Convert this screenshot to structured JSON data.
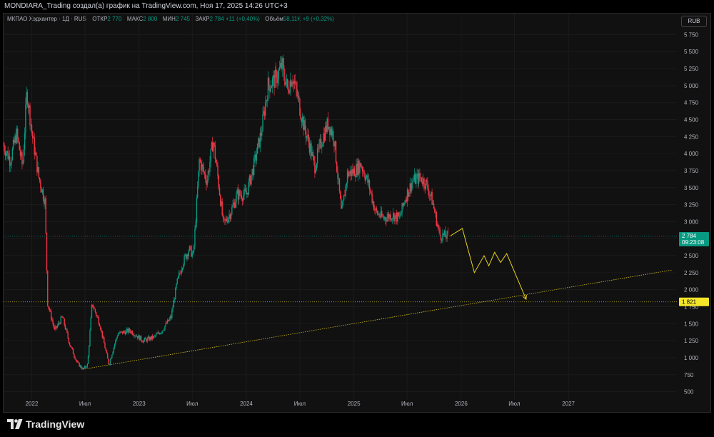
{
  "header": {
    "title": "MONDIARA_Trading создал(а) график на TradingView.com, Ноя 17, 2025 14:26 UTC+3"
  },
  "legend": {
    "symbol": "МКПАО Хэдхантер · 1Д · RUS",
    "open_label": "ОТКР",
    "open_value": "2 770",
    "high_label": "МАКС",
    "high_value": "2 800",
    "low_label": "МИН",
    "low_value": "2 745",
    "close_label": "ЗАКР",
    "close_value": "2 784",
    "change": "+11 (+0,40%)",
    "volume_label": "Объём",
    "volume_value": "58,11K",
    "volume_change": "+9 (+0,32%)"
  },
  "currency": "RUB",
  "brand": {
    "name": "TradingView",
    "logo_icon": "tradingview-logo-icon"
  },
  "colors": {
    "up": "#089981",
    "down": "#f23645",
    "trend": "#d4c21a",
    "forecast": "#e8d21c",
    "last_price_bg": "#089981",
    "level_bg": "#f5e62a"
  },
  "chart_data": {
    "type": "candlestick",
    "y_ticks": [
      500,
      750,
      1000,
      1250,
      1500,
      1750,
      2000,
      2250,
      2500,
      2750,
      3000,
      3250,
      3500,
      3750,
      4000,
      4250,
      4500,
      4750,
      5000,
      5250,
      5500,
      5750
    ],
    "y_tick_labels": [
      "500",
      "750",
      "1 000",
      "1 250",
      "1 500",
      "1 750",
      "2 000",
      "2 250",
      "2 500",
      "2 750",
      "3 000",
      "3 250",
      "3 500",
      "3 750",
      "4 000",
      "4 250",
      "4 500",
      "4 750",
      "5 000",
      "5 250",
      "5 500",
      "5 750"
    ],
    "ylim": [
      380,
      5870
    ],
    "x_labels": [
      {
        "date": "2022-01-01",
        "label": "2022"
      },
      {
        "date": "2022-07-01",
        "label": "Июл"
      },
      {
        "date": "2023-01-01",
        "label": "2023"
      },
      {
        "date": "2023-07-01",
        "label": "Июл"
      },
      {
        "date": "2024-01-01",
        "label": "2024"
      },
      {
        "date": "2024-07-01",
        "label": "Июл"
      },
      {
        "date": "2025-01-01",
        "label": "2025"
      },
      {
        "date": "2025-07-01",
        "label": "Июл"
      },
      {
        "date": "2026-01-01",
        "label": "2026"
      },
      {
        "date": "2026-07-01",
        "label": "Июл"
      },
      {
        "date": "2027-01-01",
        "label": "2027"
      }
    ],
    "xlim": [
      "2021-09-27",
      "2028-01-05"
    ],
    "price_path": [
      {
        "date": "2021-09-27",
        "price": 4120
      },
      {
        "date": "2021-10-20",
        "price": 3900
      },
      {
        "date": "2021-11-10",
        "price": 4300
      },
      {
        "date": "2021-12-01",
        "price": 3800
      },
      {
        "date": "2021-12-15",
        "price": 4920
      },
      {
        "date": "2022-01-05",
        "price": 4200
      },
      {
        "date": "2022-01-25",
        "price": 3650
      },
      {
        "date": "2022-02-15",
        "price": 3300
      },
      {
        "date": "2022-02-24",
        "price": 1800
      },
      {
        "date": "2022-03-20",
        "price": 1400
      },
      {
        "date": "2022-04-15",
        "price": 1600
      },
      {
        "date": "2022-05-10",
        "price": 1200
      },
      {
        "date": "2022-06-05",
        "price": 920
      },
      {
        "date": "2022-06-25",
        "price": 830
      },
      {
        "date": "2022-07-10",
        "price": 900
      },
      {
        "date": "2022-07-25",
        "price": 1800
      },
      {
        "date": "2022-08-20",
        "price": 1500
      },
      {
        "date": "2022-09-20",
        "price": 900
      },
      {
        "date": "2022-10-20",
        "price": 1350
      },
      {
        "date": "2022-12-01",
        "price": 1400
      },
      {
        "date": "2023-01-15",
        "price": 1250
      },
      {
        "date": "2023-02-20",
        "price": 1300
      },
      {
        "date": "2023-03-20",
        "price": 1400
      },
      {
        "date": "2023-04-20",
        "price": 1600
      },
      {
        "date": "2023-05-10",
        "price": 2100
      },
      {
        "date": "2023-05-30",
        "price": 2400
      },
      {
        "date": "2023-06-20",
        "price": 2600
      },
      {
        "date": "2023-07-05",
        "price": 2500
      },
      {
        "date": "2023-07-25",
        "price": 3900
      },
      {
        "date": "2023-08-20",
        "price": 3600
      },
      {
        "date": "2023-09-10",
        "price": 4200
      },
      {
        "date": "2023-09-25",
        "price": 3700
      },
      {
        "date": "2023-10-15",
        "price": 2950
      },
      {
        "date": "2023-11-10",
        "price": 3150
      },
      {
        "date": "2023-12-01",
        "price": 3400
      },
      {
        "date": "2024-01-01",
        "price": 3400
      },
      {
        "date": "2024-01-25",
        "price": 3800
      },
      {
        "date": "2024-02-20",
        "price": 4300
      },
      {
        "date": "2024-03-15",
        "price": 5000
      },
      {
        "date": "2024-04-10",
        "price": 5100
      },
      {
        "date": "2024-05-01",
        "price": 5300
      },
      {
        "date": "2024-05-20",
        "price": 4950
      },
      {
        "date": "2024-06-05",
        "price": 5150
      },
      {
        "date": "2024-06-25",
        "price": 4800
      },
      {
        "date": "2024-07-15",
        "price": 4400
      },
      {
        "date": "2024-08-05",
        "price": 4100
      },
      {
        "date": "2024-08-20",
        "price": 3800
      },
      {
        "date": "2024-09-10",
        "price": 4150
      },
      {
        "date": "2024-10-05",
        "price": 4450
      },
      {
        "date": "2024-10-25",
        "price": 4250
      },
      {
        "date": "2024-11-20",
        "price": 3100
      },
      {
        "date": "2024-12-10",
        "price": 3700
      },
      {
        "date": "2025-01-05",
        "price": 3750
      },
      {
        "date": "2025-01-25",
        "price": 3850
      },
      {
        "date": "2025-02-20",
        "price": 3550
      },
      {
        "date": "2025-03-15",
        "price": 3150
      },
      {
        "date": "2025-04-10",
        "price": 3050
      },
      {
        "date": "2025-05-10",
        "price": 3100
      },
      {
        "date": "2025-06-05",
        "price": 3050
      },
      {
        "date": "2025-06-25",
        "price": 3350
      },
      {
        "date": "2025-07-20",
        "price": 3600
      },
      {
        "date": "2025-08-15",
        "price": 3650
      },
      {
        "date": "2025-09-05",
        "price": 3550
      },
      {
        "date": "2025-09-25",
        "price": 3300
      },
      {
        "date": "2025-10-20",
        "price": 2800
      },
      {
        "date": "2025-11-17",
        "price": 2784
      }
    ],
    "last_price": {
      "value": 2784,
      "label": "2 784",
      "countdown": "09:23:08"
    },
    "level": {
      "value": 1821,
      "label": "1 821"
    },
    "trendline": {
      "start": {
        "date": "2022-06-25",
        "price": 830
      },
      "end": {
        "date": "2027-12-20",
        "price": 2290
      }
    },
    "forecast_path": [
      {
        "date": "2025-11-25",
        "price": 2790
      },
      {
        "date": "2026-01-05",
        "price": 2900
      },
      {
        "date": "2026-02-15",
        "price": 2250
      },
      {
        "date": "2026-03-20",
        "price": 2500
      },
      {
        "date": "2026-04-05",
        "price": 2350
      },
      {
        "date": "2026-04-25",
        "price": 2550
      },
      {
        "date": "2026-05-15",
        "price": 2400
      },
      {
        "date": "2026-06-05",
        "price": 2530
      },
      {
        "date": "2026-08-10",
        "price": 1860
      }
    ]
  }
}
